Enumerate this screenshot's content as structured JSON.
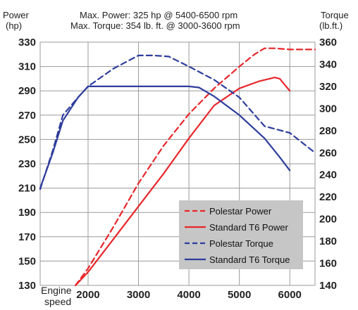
{
  "header": {
    "left_label_1": "Power",
    "left_label_2": "(hp)",
    "right_label_1": "Torque",
    "right_label_2": "(lb.ft.)",
    "subtitle_1": "Max. Power: 325 hp @ 5400-6500 rpm",
    "subtitle_2": "Max. Torque: 354 lb. ft. @ 3000-3600 rpm"
  },
  "chart_data": {
    "type": "line",
    "xlabel": "Engine speed",
    "xlabel_lines": [
      "Engine",
      "speed"
    ],
    "x_range": [
      1050,
      6500
    ],
    "x_ticks": [
      2000,
      3000,
      4000,
      5000,
      6000
    ],
    "y_left": {
      "label": "Power (hp)",
      "range": [
        130,
        330
      ],
      "ticks": [
        130,
        150,
        170,
        190,
        210,
        230,
        250,
        270,
        290,
        310,
        330
      ]
    },
    "y_right": {
      "label": "Torque (lb.ft.)",
      "range": [
        140,
        360
      ],
      "ticks": [
        140,
        160,
        180,
        200,
        220,
        240,
        260,
        280,
        300,
        320,
        340,
        360
      ]
    },
    "grid": true,
    "legend_position": "bottom-right",
    "series": [
      {
        "name": "Polestar Power",
        "axis": "left",
        "color": "#e8262b",
        "dash": true,
        "x": [
          1750,
          2000,
          2500,
          3000,
          3500,
          4000,
          4500,
          5000,
          5300,
          5500,
          5700,
          6000,
          6200,
          6500
        ],
        "y": [
          130,
          144,
          178,
          214,
          245,
          271,
          292,
          310,
          320,
          325,
          325,
          324,
          324,
          324
        ]
      },
      {
        "name": "Standard T6 Power",
        "axis": "left",
        "color": "#e8262b",
        "dash": false,
        "x": [
          1750,
          2000,
          2500,
          3000,
          3500,
          4000,
          4500,
          5000,
          5400,
          5700,
          5800,
          6000
        ],
        "y": [
          130,
          141,
          168,
          195,
          222,
          251,
          278,
          292,
          298,
          301,
          300,
          290
        ]
      },
      {
        "name": "Polestar Torque",
        "axis": "right",
        "color": "#2e3d9c",
        "dash": true,
        "x": [
          1050,
          1300,
          1500,
          1800,
          2000,
          2500,
          3000,
          3300,
          3600,
          4000,
          4500,
          5000,
          5500,
          6000,
          6500
        ],
        "y": [
          227,
          262,
          294,
          310,
          320,
          336,
          348,
          348,
          347,
          338,
          326,
          310,
          284,
          278,
          260
        ]
      },
      {
        "name": "Standard T6 Torque",
        "axis": "right",
        "color": "#2e3d9c",
        "dash": false,
        "x": [
          1050,
          1300,
          1500,
          1800,
          2000,
          2500,
          3000,
          3500,
          4000,
          4200,
          4500,
          5000,
          5500,
          5800,
          6000
        ],
        "y": [
          228,
          260,
          289,
          310,
          320,
          320,
          320,
          320,
          320,
          319,
          311,
          294,
          273,
          256,
          244
        ]
      }
    ]
  }
}
